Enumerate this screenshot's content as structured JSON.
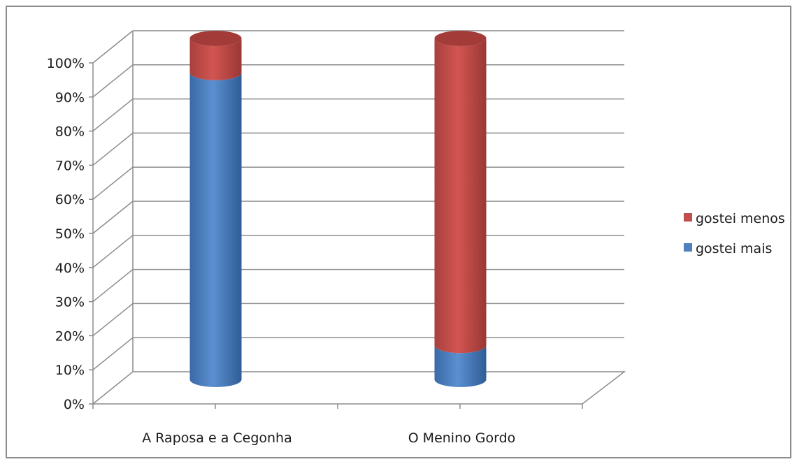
{
  "chart_data": {
    "type": "bar",
    "stacked": true,
    "percent_stacked": true,
    "three_d": true,
    "bar_shape": "cylinder",
    "categories": [
      "A Raposa e a Cegonha",
      "O Menino Gordo"
    ],
    "series": [
      {
        "name": "gostei mais",
        "values": [
          90,
          10
        ],
        "color": "#4f81bd"
      },
      {
        "name": "gostei menos",
        "values": [
          10,
          90
        ],
        "color": "#c0504d"
      }
    ],
    "ylim": [
      0,
      100
    ],
    "yticks": [
      "0%",
      "10%",
      "20%",
      "30%",
      "40%",
      "50%",
      "60%",
      "70%",
      "80%",
      "90%",
      "100%"
    ],
    "grid": true,
    "legend_position": "right",
    "legend": [
      "gostei menos",
      "gostei mais"
    ]
  }
}
